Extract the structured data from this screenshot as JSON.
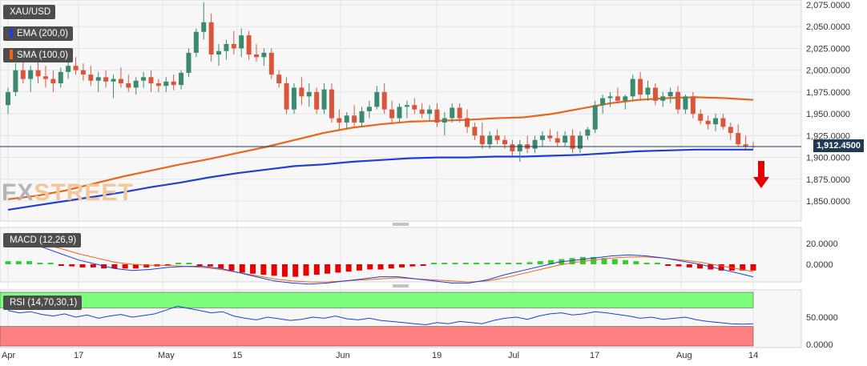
{
  "instrument": "XAU/USD",
  "watermark": {
    "part1": "FX",
    "part2": "STREET"
  },
  "indicators": {
    "ema": {
      "label": "EMA (200,0)",
      "color": "#1f3fd1"
    },
    "sma": {
      "label": "SMA (100,0)",
      "color": "#e8671a"
    },
    "macd": {
      "label": "MACD (12,26,9)"
    },
    "rsi": {
      "label": "RSI (14,70,30,1)"
    }
  },
  "last_price": "1,912.4500",
  "signal": "down-arrow-icon",
  "colors": {
    "up": "#3b8a6e",
    "down": "#d9563c",
    "macd_pos": "#33cc33",
    "macd_neg": "#e60000",
    "rsi_over": "#7dff7d",
    "rsi_under": "#ff8080"
  },
  "chart_data": [
    {
      "type": "candlestick",
      "name": "XAU/USD daily",
      "y_ticks": [
        "2,075.0000",
        "2,050.0000",
        "2,025.0000",
        "2,000.0000",
        "1,975.0000",
        "1,950.0000",
        "1,925.0000",
        "1,900.0000",
        "1,875.0000",
        "1,850.0000"
      ],
      "ylim": [
        1835,
        2080
      ],
      "x_ticks": [
        "Apr",
        "17",
        "May",
        "15",
        "Jun",
        "19",
        "Jul",
        "17",
        "Aug",
        "14"
      ],
      "candles": [
        [
          1960,
          1980,
          1950,
          1975
        ],
        [
          1975,
          2008,
          1970,
          2000
        ],
        [
          2000,
          2012,
          1985,
          1990
        ],
        [
          1990,
          2005,
          1975,
          2000
        ],
        [
          2000,
          2010,
          1985,
          1993
        ],
        [
          1993,
          2005,
          1980,
          1990
        ],
        [
          1990,
          2000,
          1975,
          1985
        ],
        [
          1985,
          2003,
          1980,
          1998
        ],
        [
          1998,
          2010,
          1990,
          2005
        ],
        [
          2005,
          2015,
          1995,
          2000
        ],
        [
          2000,
          2008,
          1988,
          1995
        ],
        [
          1995,
          2005,
          1982,
          1988
        ],
        [
          1988,
          1998,
          1975,
          1992
        ],
        [
          1992,
          2000,
          1980,
          1987
        ],
        [
          1987,
          1995,
          1968,
          1990
        ],
        [
          1990,
          2003,
          1980,
          1985
        ],
        [
          1985,
          1995,
          1975,
          1980
        ],
        [
          1980,
          1992,
          1972,
          1988
        ],
        [
          1988,
          1998,
          1980,
          1992
        ],
        [
          1992,
          2000,
          1975,
          1985
        ],
        [
          1985,
          1990,
          1975,
          1982
        ],
        [
          1982,
          1992,
          1975,
          1987
        ],
        [
          1987,
          1995,
          1977,
          1983
        ],
        [
          1983,
          2000,
          1978,
          1997
        ],
        [
          1997,
          2025,
          1992,
          2020
        ],
        [
          2020,
          2048,
          2015,
          2044
        ],
        [
          2044,
          2078,
          2035,
          2055
        ],
        [
          2055,
          2065,
          2010,
          2018
        ],
        [
          2018,
          2030,
          2005,
          2022
        ],
        [
          2022,
          2035,
          2012,
          2030
        ],
        [
          2030,
          2045,
          2018,
          2025
        ],
        [
          2025,
          2048,
          2015,
          2040
        ],
        [
          2040,
          2045,
          2012,
          2018
        ],
        [
          2018,
          2030,
          2010,
          2015
        ],
        [
          2015,
          2025,
          2005,
          2020
        ],
        [
          2020,
          2025,
          1990,
          1995
        ],
        [
          1995,
          2000,
          1980,
          1985
        ],
        [
          1985,
          1992,
          1950,
          1955
        ],
        [
          1955,
          1985,
          1950,
          1980
        ],
        [
          1980,
          1992,
          1960,
          1970
        ],
        [
          1970,
          1985,
          1958,
          1975
        ],
        [
          1975,
          1980,
          1950,
          1955
        ],
        [
          1955,
          1985,
          1950,
          1978
        ],
        [
          1978,
          1985,
          1940,
          1945
        ],
        [
          1945,
          1955,
          1932,
          1940
        ],
        [
          1940,
          1952,
          1932,
          1948
        ],
        [
          1948,
          1960,
          1935,
          1940
        ],
        [
          1940,
          1958,
          1935,
          1953
        ],
        [
          1953,
          1965,
          1945,
          1958
        ],
        [
          1958,
          1982,
          1955,
          1975
        ],
        [
          1975,
          1985,
          1950,
          1955
        ],
        [
          1955,
          1965,
          1940,
          1945
        ],
        [
          1945,
          1962,
          1940,
          1958
        ],
        [
          1958,
          1965,
          1945,
          1960
        ],
        [
          1960,
          1968,
          1950,
          1955
        ],
        [
          1955,
          1962,
          1945,
          1950
        ],
        [
          1950,
          1960,
          1942,
          1955
        ],
        [
          1955,
          1962,
          1935,
          1940
        ],
        [
          1940,
          1952,
          1925,
          1945
        ],
        [
          1945,
          1962,
          1940,
          1957
        ],
        [
          1957,
          1962,
          1940,
          1945
        ],
        [
          1945,
          1955,
          1928,
          1935
        ],
        [
          1935,
          1940,
          1920,
          1925
        ],
        [
          1925,
          1940,
          1910,
          1915
        ],
        [
          1915,
          1930,
          1910,
          1925
        ],
        [
          1925,
          1932,
          1915,
          1920
        ],
        [
          1920,
          1925,
          1910,
          1915
        ],
        [
          1915,
          1920,
          1902,
          1907
        ],
        [
          1907,
          1920,
          1895,
          1915
        ],
        [
          1915,
          1925,
          1905,
          1910
        ],
        [
          1910,
          1925,
          1905,
          1920
        ],
        [
          1920,
          1930,
          1912,
          1925
        ],
        [
          1925,
          1932,
          1918,
          1922
        ],
        [
          1922,
          1930,
          1912,
          1917
        ],
        [
          1917,
          1930,
          1912,
          1925
        ],
        [
          1925,
          1932,
          1905,
          1910
        ],
        [
          1910,
          1930,
          1905,
          1925
        ],
        [
          1925,
          1935,
          1920,
          1932
        ],
        [
          1932,
          1965,
          1928,
          1960
        ],
        [
          1960,
          1972,
          1950,
          1968
        ],
        [
          1968,
          1975,
          1958,
          1970
        ],
        [
          1970,
          1980,
          1962,
          1965
        ],
        [
          1965,
          1972,
          1955,
          1970
        ],
        [
          1970,
          1995,
          1965,
          1990
        ],
        [
          1990,
          1998,
          1965,
          1972
        ],
        [
          1972,
          1988,
          1965,
          1980
        ],
        [
          1980,
          1985,
          1960,
          1965
        ],
        [
          1965,
          1975,
          1958,
          1970
        ],
        [
          1970,
          1980,
          1962,
          1975
        ],
        [
          1975,
          1982,
          1950,
          1955
        ],
        [
          1955,
          1972,
          1950,
          1970
        ],
        [
          1970,
          1975,
          1945,
          1950
        ],
        [
          1950,
          1955,
          1938,
          1942
        ],
        [
          1942,
          1948,
          1932,
          1938
        ],
        [
          1938,
          1950,
          1930,
          1945
        ],
        [
          1945,
          1950,
          1932,
          1935
        ],
        [
          1935,
          1940,
          1920,
          1928
        ],
        [
          1928,
          1938,
          1912,
          1915
        ],
        [
          1915,
          1925,
          1910,
          1913
        ],
        [
          1913,
          1918,
          1910,
          1912.45
        ]
      ],
      "sma_100": [
        1852,
        1856,
        1862,
        1870,
        1878,
        1885,
        1892,
        1898,
        1905,
        1912,
        1920,
        1928,
        1934,
        1938,
        1941,
        1942,
        1943,
        1945,
        1946,
        1950,
        1956,
        1962,
        1966,
        1968,
        1969,
        1968,
        1966
      ],
      "ema_200": [
        1840,
        1845,
        1850,
        1855,
        1860,
        1866,
        1871,
        1877,
        1882,
        1886,
        1890,
        1892,
        1895,
        1897,
        1899,
        1900,
        1900,
        1901,
        1901,
        1902,
        1903,
        1905,
        1907,
        1908,
        1909,
        1909,
        1909
      ]
    },
    {
      "type": "bar",
      "name": "MACD (12,26,9)",
      "y_ticks": [
        "20.0000",
        "0.0000"
      ],
      "ylim": [
        -30,
        35
      ],
      "histogram": [
        3,
        3,
        3,
        1,
        0,
        -1,
        -2,
        -3,
        -3,
        -4,
        -4,
        -4,
        -4,
        -3,
        -2,
        -1,
        0,
        0,
        -1,
        -2,
        -4,
        -6,
        -8,
        -9,
        -10,
        -11,
        -12,
        -12,
        -11,
        -10,
        -9,
        -8,
        -7,
        -6,
        -5,
        -5,
        -4,
        -3,
        -2,
        -1,
        0,
        0,
        0,
        0,
        0,
        0,
        0,
        0,
        1,
        2,
        3,
        4,
        5,
        6,
        7,
        7,
        6,
        5,
        4,
        3,
        1,
        0,
        -1,
        -2,
        -3,
        -4,
        -5,
        -6,
        -6,
        -6,
        -6
      ],
      "macd_line": [
        22,
        20,
        16,
        10,
        4,
        0,
        -4,
        -6,
        -5,
        -3,
        -2,
        -2,
        -4,
        -8,
        -12,
        -16,
        -18,
        -19,
        -18,
        -16,
        -14,
        -12,
        -12,
        -14,
        -16,
        -18,
        -18,
        -15,
        -10,
        -6,
        -2,
        2,
        4,
        6,
        8,
        9,
        8,
        6,
        3,
        0,
        -4,
        -8,
        -12
      ],
      "signal_line": [
        24,
        22,
        19,
        15,
        10,
        6,
        2,
        0,
        -1,
        -1,
        -2,
        -3,
        -5,
        -8,
        -11,
        -14,
        -16,
        -17,
        -17,
        -16,
        -15,
        -14,
        -13,
        -14,
        -15,
        -16,
        -17,
        -16,
        -13,
        -9,
        -5,
        -1,
        2,
        4,
        6,
        7,
        7,
        6,
        4,
        2,
        -1,
        -4,
        -7
      ]
    },
    {
      "type": "line",
      "name": "RSI (14,70,30,1)",
      "y_ticks": [
        "50.0000",
        "0.0000"
      ],
      "ylim": [
        0,
        100
      ],
      "overbought": 70,
      "oversold": 30,
      "values": [
        62,
        58,
        60,
        55,
        52,
        56,
        50,
        54,
        48,
        52,
        55,
        50,
        53,
        56,
        63,
        70,
        66,
        62,
        58,
        60,
        52,
        48,
        45,
        50,
        47,
        44,
        46,
        50,
        48,
        52,
        47,
        45,
        48,
        44,
        42,
        40,
        38,
        36,
        40,
        38,
        42,
        40,
        38,
        44,
        48,
        50,
        46,
        52,
        56,
        58,
        54,
        56,
        60,
        58,
        55,
        52,
        48,
        50,
        46,
        48,
        50,
        45,
        42,
        40,
        38,
        37,
        38
      ]
    }
  ]
}
